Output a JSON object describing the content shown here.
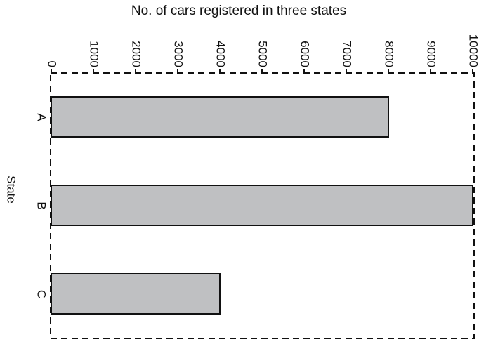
{
  "chart_data": {
    "type": "bar",
    "orientation": "horizontal",
    "title": "No. of cars registered in three states",
    "y_label": "State",
    "categories": [
      "A",
      "B",
      "C"
    ],
    "values": [
      8000,
      10000,
      4000
    ],
    "color": "#bfc0c2",
    "xlim": [
      0,
      10000
    ],
    "xticks": [
      0,
      1000,
      2000,
      3000,
      4000,
      5000,
      6000,
      7000,
      8000,
      9000,
      10000
    ]
  }
}
